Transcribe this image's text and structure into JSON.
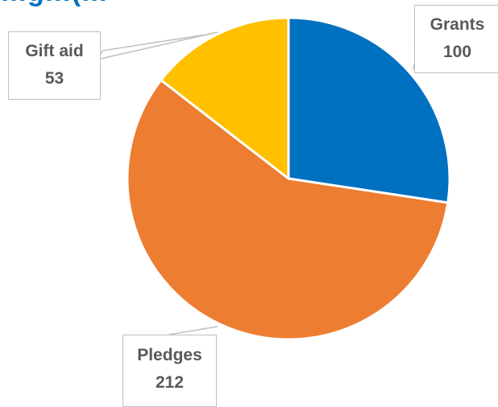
{
  "chart_data": {
    "type": "pie",
    "title": "…g…(…",
    "slices": [
      {
        "label": "Grants",
        "value": 100,
        "color": "#0070c0"
      },
      {
        "label": "Pledges",
        "value": 212,
        "color": "#ed7d31"
      },
      {
        "label": "Gift aid",
        "value": 53,
        "color": "#ffc000"
      }
    ],
    "start_angle_deg": 0,
    "direction": "clockwise",
    "slice_border_color": "#ffffff",
    "data_labels": "callouts"
  }
}
